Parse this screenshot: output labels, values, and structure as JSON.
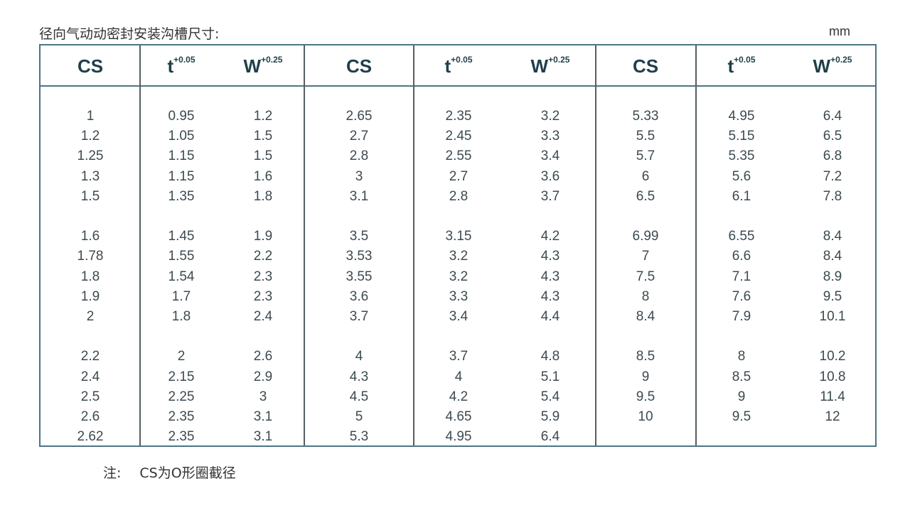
{
  "title": "径向气动动密封安装沟槽尺寸:",
  "unit": "mm",
  "colors": {
    "border": "#4b7584",
    "header_text": "#1f3f4a",
    "body_text": "#3c4a50"
  },
  "table": {
    "headers": [
      {
        "label": "CS",
        "sup": ""
      },
      {
        "label": "t",
        "sup": "+0.05"
      },
      {
        "label": "W",
        "sup": "+0.25"
      },
      {
        "label": "CS",
        "sup": ""
      },
      {
        "label": "t",
        "sup": "+0.05"
      },
      {
        "label": "W",
        "sup": "+0.25"
      },
      {
        "label": "CS",
        "sup": ""
      },
      {
        "label": "t",
        "sup": "+0.05"
      },
      {
        "label": "W",
        "sup": "+0.25"
      }
    ],
    "rows": [
      [
        "1",
        "0.95",
        "1.2",
        "2.65",
        "2.35",
        "3.2",
        "5.33",
        "4.95",
        "6.4"
      ],
      [
        "1.2",
        "1.05",
        "1.5",
        "2.7",
        "2.45",
        "3.3",
        "5.5",
        "5.15",
        "6.5"
      ],
      [
        "1.25",
        "1.15",
        "1.5",
        "2.8",
        "2.55",
        "3.4",
        "5.7",
        "5.35",
        "6.8"
      ],
      [
        "1.3",
        "1.15",
        "1.6",
        "3",
        "2.7",
        "3.6",
        "6",
        "5.6",
        "7.2"
      ],
      [
        "1.5",
        "1.35",
        "1.8",
        "3.1",
        "2.8",
        "3.7",
        "6.5",
        "6.1",
        "7.8"
      ],
      [
        "1.6",
        "1.45",
        "1.9",
        "3.5",
        "3.15",
        "4.2",
        "6.99",
        "6.55",
        "8.4"
      ],
      [
        "1.78",
        "1.55",
        "2.2",
        "3.53",
        "3.2",
        "4.3",
        "7",
        "6.6",
        "8.4"
      ],
      [
        "1.8",
        "1.54",
        "2.3",
        "3.55",
        "3.2",
        "4.3",
        "7.5",
        "7.1",
        "8.9"
      ],
      [
        "1.9",
        "1.7",
        "2.3",
        "3.6",
        "3.3",
        "4.3",
        "8",
        "7.6",
        "9.5"
      ],
      [
        "2",
        "1.8",
        "2.4",
        "3.7",
        "3.4",
        "4.4",
        "8.4",
        "7.9",
        "10.1"
      ],
      [
        "2.2",
        "2",
        "2.6",
        "4",
        "3.7",
        "4.8",
        "8.5",
        "8",
        "10.2"
      ],
      [
        "2.4",
        "2.15",
        "2.9",
        "4.3",
        "4",
        "5.1",
        "9",
        "8.5",
        "10.8"
      ],
      [
        "2.5",
        "2.25",
        "3",
        "4.5",
        "4.2",
        "5.4",
        "9.5",
        "9",
        "11.4"
      ],
      [
        "2.6",
        "2.35",
        "3.1",
        "5",
        "4.65",
        "5.9",
        "10",
        "9.5",
        "12"
      ],
      [
        "2.62",
        "2.35",
        "3.1",
        "5.3",
        "4.95",
        "6.4",
        "",
        "",
        ""
      ]
    ]
  },
  "note": {
    "label": "注:",
    "text": "CS为O形圈截径"
  }
}
